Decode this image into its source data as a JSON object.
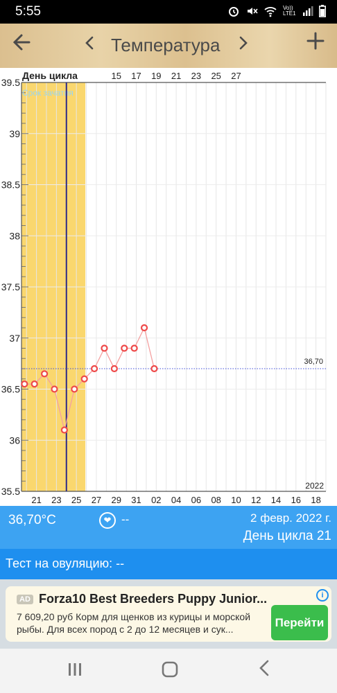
{
  "status": {
    "time": "5:55",
    "net_label": "Vo)) LTE1"
  },
  "appbar": {
    "title": "Температура",
    "back_icon": "arrow-left-icon",
    "add_icon": "plus-icon"
  },
  "chart_data": {
    "type": "line",
    "title": "",
    "top_label": "День цикла",
    "top_ticks": [
      {
        "day": 15,
        "label": "15"
      },
      {
        "day": 17,
        "label": "17"
      },
      {
        "day": 19,
        "label": "19"
      },
      {
        "day": 21,
        "label": "21"
      },
      {
        "day": 23,
        "label": "23"
      },
      {
        "day": 25,
        "label": "25"
      },
      {
        "day": 27,
        "label": "27"
      }
    ],
    "bottom_ticks": [
      {
        "day": 7,
        "label": "21"
      },
      {
        "day": 9,
        "label": "23"
      },
      {
        "day": 11,
        "label": "25"
      },
      {
        "day": 13,
        "label": "27"
      },
      {
        "day": 15,
        "label": "29"
      },
      {
        "day": 17,
        "label": "31"
      },
      {
        "day": 19,
        "label": "02"
      },
      {
        "day": 21,
        "label": "04"
      },
      {
        "day": 23,
        "label": "06"
      },
      {
        "day": 25,
        "label": "08"
      },
      {
        "day": 27,
        "label": "10"
      },
      {
        "day": 29,
        "label": "12"
      },
      {
        "day": 31,
        "label": "14"
      },
      {
        "day": 33,
        "label": "16"
      },
      {
        "day": 35,
        "label": "18"
      }
    ],
    "year_label": "2022",
    "x_range": [
      5.5,
      36
    ],
    "ylim": [
      35.5,
      39.5
    ],
    "y_ticks": [
      "35.5",
      "36",
      "36.5",
      "37",
      "37.5",
      "38",
      "38.5",
      "39",
      "39.5"
    ],
    "fertile_window": {
      "label": "Срок зачатия",
      "from_day": 5.5,
      "to_day": 11.9
    },
    "ovulation_day": 10,
    "cover_line": {
      "value": 36.7,
      "label": "36,70"
    },
    "series": [
      {
        "x": [
          5.8,
          6.8,
          7.8,
          8.8,
          9.8,
          10.8,
          11.8,
          12.8,
          13.8,
          14.8,
          15.8,
          16.8,
          17.8,
          18.8
        ],
        "values": [
          36.55,
          36.55,
          36.65,
          36.5,
          36.1,
          36.5,
          36.6,
          36.7,
          36.9,
          36.7,
          36.9,
          36.9,
          37.1,
          36.7
        ]
      }
    ],
    "colors": {
      "fertile": "#fad76e",
      "line": "#f4a0a0",
      "point": "#ee4a4a",
      "ovulation": "#2d2a87",
      "cover": "#3b4ad8"
    }
  },
  "info": {
    "temp": "36,70°C",
    "heart_value": "--",
    "date": "2 февр. 2022 г.",
    "cycle_day": "День цикла 21"
  },
  "ovulation_test": {
    "text": "Тест на овуляцию: --"
  },
  "ad": {
    "tag": "AD",
    "title": "Forza10 Best Breeders Puppy Junior...",
    "description": "7 609,20 руб Корм для щенков из курицы и морской рыбы. Для всех пород с 2 до 12 месяцев и сук...",
    "button": "Перейти"
  },
  "navbar": {
    "recents_icon": "recents-icon",
    "home_icon": "home-icon",
    "back_icon": "nav-back-icon"
  }
}
